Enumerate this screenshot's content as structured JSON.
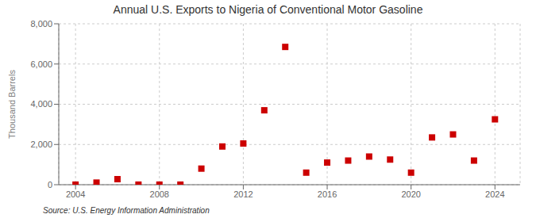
{
  "chart_data": {
    "type": "scatter",
    "title": "Annual U.S. Exports to Nigeria of Conventional Motor Gasoline",
    "ylabel": "Thousand Barrels",
    "annotations": [
      "Source: U.S. Energy Information Administration"
    ],
    "x": [
      2004,
      2005,
      2006,
      2007,
      2008,
      2009,
      2010,
      2011,
      2012,
      2013,
      2014,
      2015,
      2016,
      2017,
      2018,
      2019,
      2020,
      2021,
      2022,
      2023,
      2024
    ],
    "values": [
      5,
      105,
      275,
      5,
      5,
      5,
      800,
      1900,
      2050,
      3700,
      6850,
      600,
      1100,
      1200,
      1400,
      1250,
      600,
      2350,
      2500,
      1200,
      3250
    ],
    "color": "#cc0000",
    "marker": "square",
    "xlim": [
      2003.2,
      2025.2
    ],
    "xticks": [
      2004,
      2008,
      2012,
      2016,
      2020,
      2024
    ],
    "ylim": [
      0,
      8000
    ],
    "yticks": [
      0,
      {
        "value": 2000,
        "label": "2,000"
      },
      {
        "value": 4000,
        "label": "4,000"
      },
      {
        "value": 6000,
        "label": "6,000"
      },
      {
        "value": 8000,
        "label": "8,000"
      }
    ],
    "grid": true
  }
}
